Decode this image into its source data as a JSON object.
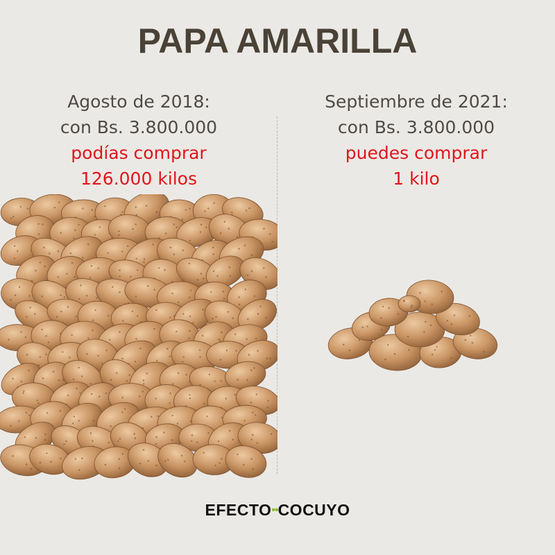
{
  "title": "PAPA AMARILLA",
  "left": {
    "line1": "Agosto de 2018:",
    "line2": "con Bs. 3.800.000",
    "line3": "podías comprar",
    "line4": "126.000 kilos"
  },
  "right": {
    "line1": "Septiembre de 2021:",
    "line2": "con Bs. 3.800.000",
    "line3": "puedes comprar",
    "line4": "1 kilo"
  },
  "logo": {
    "word1": "EFECTO",
    "dots": "••",
    "word2": "COCUYO"
  },
  "colors": {
    "background": "#ebe9e5",
    "title": "#4a4237",
    "highlight": "#e0151b",
    "potato": "#c99463",
    "logo_accent": "#8bbf3a"
  },
  "images": {
    "big_pile": "potato-pile-large",
    "small_pile": "potato-pile-small"
  }
}
